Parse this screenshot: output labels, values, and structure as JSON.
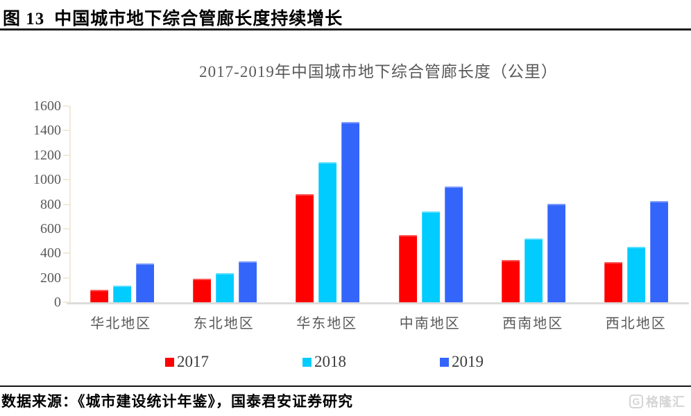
{
  "figure": {
    "label": "图 13",
    "title": "中国城市地下综合管廊长度持续增长"
  },
  "chart_data": {
    "type": "bar",
    "title": "2017-2019年中国城市地下综合管廊长度（公里）",
    "categories": [
      "华北地区",
      "东北地区",
      "华东地区",
      "中南地区",
      "西南地区",
      "西北地区"
    ],
    "series": [
      {
        "name": "2017",
        "color": "#fe0000",
        "values": [
          100,
          190,
          880,
          550,
          345,
          330
        ]
      },
      {
        "name": "2018",
        "color": "#00ccff",
        "values": [
          135,
          240,
          1140,
          740,
          520,
          455
        ]
      },
      {
        "name": "2019",
        "color": "#3465fa",
        "values": [
          315,
          335,
          1470,
          945,
          805,
          825
        ]
      }
    ],
    "ylim": [
      0,
      1600
    ],
    "yticks": [
      0,
      200,
      400,
      600,
      800,
      1000,
      1200,
      1400,
      1600
    ],
    "grid": false,
    "legend_position": "bottom",
    "axis_color": "#f0ead9",
    "baseline_color": "#dcdcdc"
  },
  "footer": {
    "source": "数据来源：《城市建设统计年鉴》，国泰君安证券研究",
    "logo_icon": "G",
    "logo_text": "格隆汇"
  }
}
